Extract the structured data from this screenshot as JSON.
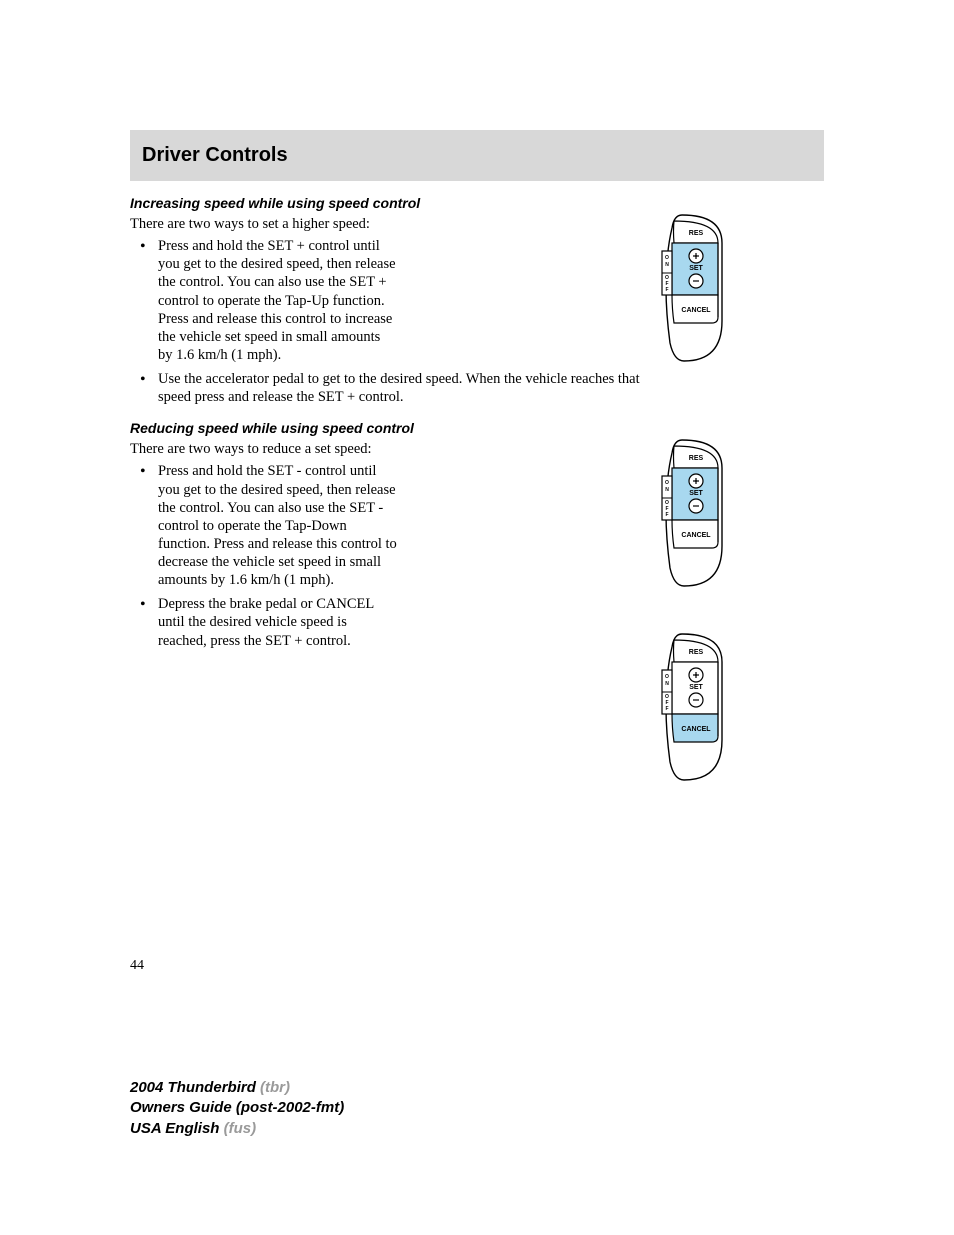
{
  "header": {
    "title": "Driver Controls"
  },
  "section1": {
    "heading": "Increasing speed while using speed control",
    "intro": "There are two ways to set a higher speed:",
    "bullets": [
      "Press and hold the SET + control until you get to the desired speed, then release the control. You can also use the SET + control to operate the Tap-Up function. Press and release this control to increase the vehicle set speed in small amounts by 1.6 km/h (1 mph).",
      "Use the accelerator pedal to get to the desired speed. When the vehicle reaches that speed press and release the SET + control."
    ]
  },
  "section2": {
    "heading": "Reducing speed while using speed control",
    "intro": "There are two ways to reduce a set speed:",
    "bullets": [
      "Press and hold the SET - control until you get to the desired speed, then release the control. You can also use the SET - control to operate the Tap-Down function. Press and release this control to decrease the vehicle set speed in small amounts by 1.6 km/h (1 mph).",
      "Depress the brake pedal or CANCEL until the desired vehicle speed is reached, press the SET + control."
    ]
  },
  "diagram": {
    "labels": {
      "res": "RES",
      "set": "SET",
      "cancel": "CANCEL",
      "on": "O\nN",
      "off": "O\nF\nF"
    },
    "colors": {
      "highlight": "#a8d8ef",
      "stroke": "#000000",
      "fill": "#ffffff",
      "label_fontsize": 7
    },
    "instances": [
      {
        "highlight": "set"
      },
      {
        "highlight": "set"
      },
      {
        "highlight": "cancel"
      }
    ]
  },
  "pageNumber": "44",
  "footer": {
    "line1a": "2004 Thunderbird ",
    "line1b": "(tbr)",
    "line2": "Owners Guide (post-2002-fmt)",
    "line3a": "USA English ",
    "line3b": "(fus)"
  }
}
